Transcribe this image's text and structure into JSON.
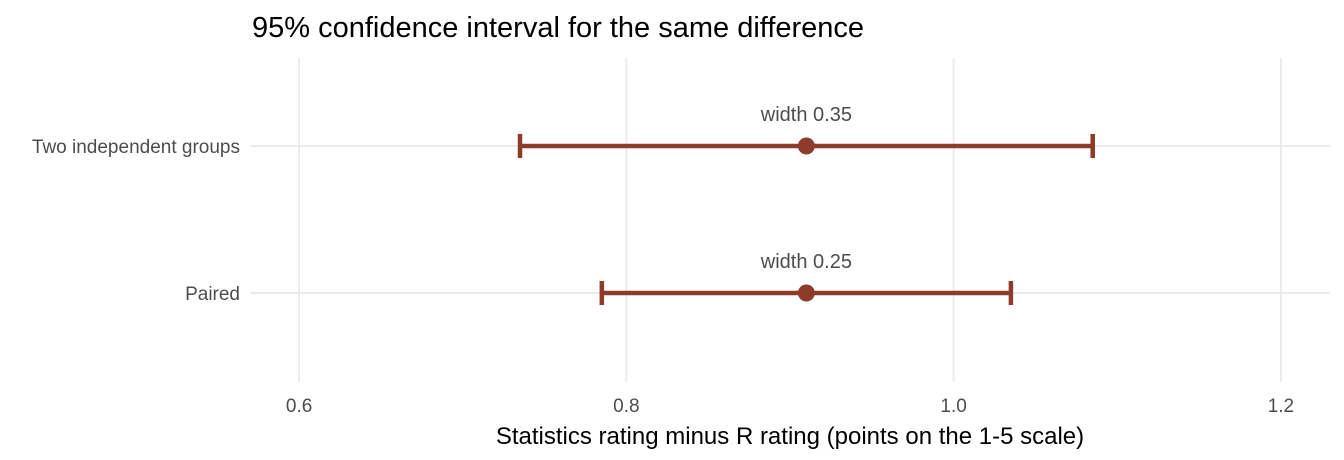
{
  "chart_data": {
    "type": "errorbar",
    "title": "95% confidence interval for the same difference",
    "xlabel": "Statistics rating minus R rating (points on the 1-5 scale)",
    "ylabel": "",
    "xlim": [
      0.57,
      1.23
    ],
    "x_ticks": [
      0.6,
      0.8,
      1.0,
      1.2
    ],
    "x_tick_labels": [
      "0.6",
      "0.8",
      "1.0",
      "1.2"
    ],
    "grid": true,
    "legend": "none",
    "color": "#8e3b2b",
    "categories": [
      "Two independent groups",
      "Paired"
    ],
    "points": [
      {
        "category": "Two independent groups",
        "estimate": 0.91,
        "lower": 0.735,
        "upper": 1.085,
        "label": "width 0.35"
      },
      {
        "category": "Paired",
        "estimate": 0.91,
        "lower": 0.785,
        "upper": 1.035,
        "label": "width 0.25"
      }
    ]
  }
}
